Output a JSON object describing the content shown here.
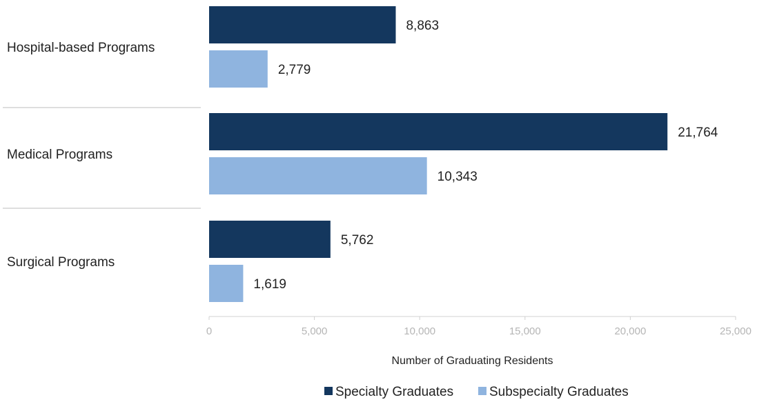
{
  "chart_data": {
    "type": "bar",
    "orientation": "horizontal",
    "categories": [
      "Hospital-based Programs",
      "Medical Programs",
      "Surgical Programs"
    ],
    "series": [
      {
        "name": "Specialty Graduates",
        "values": [
          8863,
          21764,
          5762
        ],
        "labels": [
          "8,863",
          "21,764",
          "5,762"
        ],
        "color": "#14375e"
      },
      {
        "name": "Subspecialty Graduates",
        "values": [
          2779,
          10343,
          1619
        ],
        "labels": [
          "2,779",
          "10,343",
          "1,619"
        ],
        "color": "#8fb4df"
      }
    ],
    "xlabel": "Number of Graduating Residents",
    "xlim": [
      0,
      25000
    ],
    "xticks": [
      0,
      5000,
      10000,
      15000,
      20000,
      25000
    ],
    "xtick_labels": [
      "0",
      "5,000",
      "10,000",
      "15,000",
      "20,000",
      "25,000"
    ],
    "grid": false,
    "legend_position": "bottom"
  }
}
